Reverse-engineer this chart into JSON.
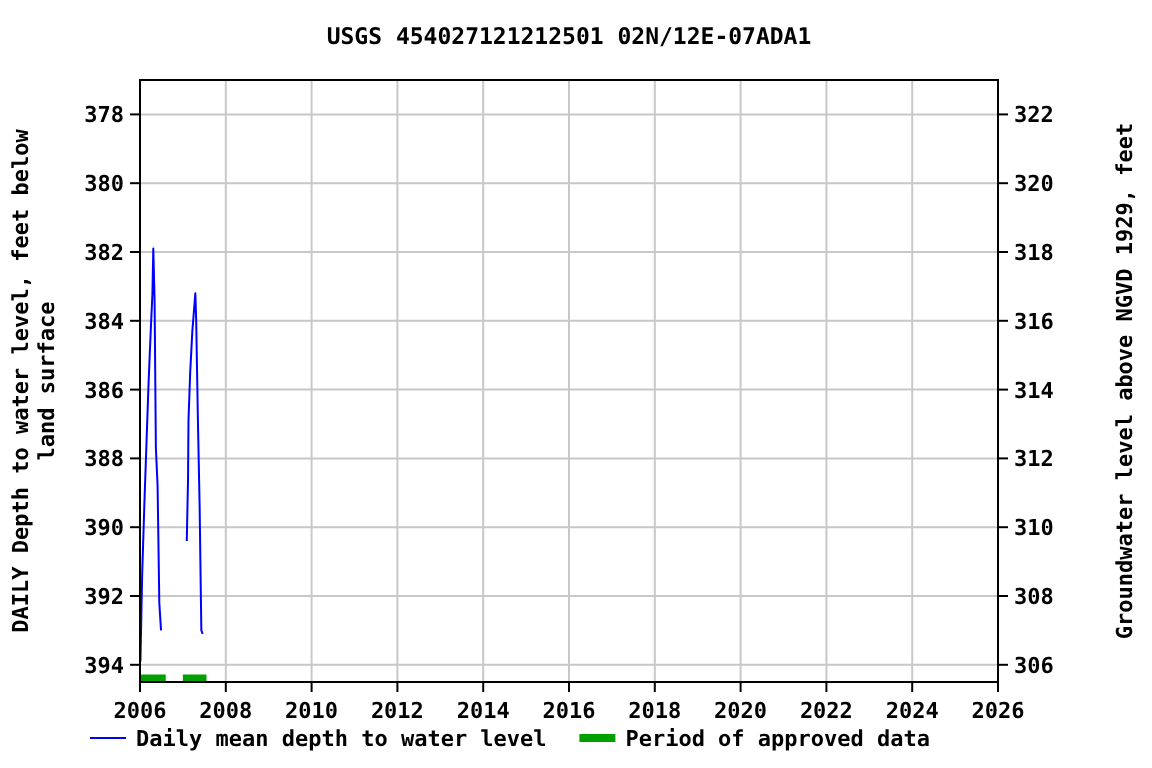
{
  "chart_data": {
    "type": "line",
    "title": "USGS 454027121212501 02N/12E-07ADA1",
    "ylabel": "DAILY Depth to water level, feet below land surface",
    "y2label": "Groundwater level above NGVD 1929, feet",
    "xlim": [
      2006,
      2026
    ],
    "xticks": [
      2006,
      2008,
      2010,
      2012,
      2014,
      2016,
      2018,
      2020,
      2022,
      2024,
      2026
    ],
    "ylim": [
      394.5,
      377
    ],
    "yticks": [
      378,
      380,
      382,
      384,
      386,
      388,
      390,
      392,
      394
    ],
    "y2lim": [
      305.5,
      323
    ],
    "y2ticks": [
      322,
      320,
      318,
      316,
      314,
      312,
      310,
      308,
      306
    ],
    "grid": true,
    "legend": "bottom",
    "series": [
      {
        "name": "Daily mean depth to water level",
        "color": "#0000ff",
        "x": [
          2006.01,
          2006.05,
          2006.1,
          2006.15,
          2006.2,
          2006.25,
          2006.29,
          2006.31,
          2006.34,
          2006.37,
          2006.41,
          2006.45,
          2006.49,
          2006.5,
          2007.09,
          2007.12,
          2007.13,
          2007.17,
          2007.22,
          2007.29,
          2007.31,
          2007.35,
          2007.39,
          2007.43,
          2007.46
        ],
        "values": [
          393.9,
          391.4,
          389.4,
          387.6,
          385.8,
          384.3,
          383.2,
          381.9,
          383.4,
          387.7,
          388.8,
          392.2,
          393.0,
          null,
          390.4,
          388.6,
          386.9,
          385.5,
          384.3,
          383.2,
          384.0,
          386.9,
          389.4,
          393.0,
          393.1
        ]
      },
      {
        "name": "Period of approved data",
        "color": "#00a000",
        "x": [
          2006.0,
          2006.6,
          2006.8,
          2007.0,
          2007.55
        ],
        "values": [
          394.4,
          394.4,
          null,
          394.4,
          394.4
        ]
      }
    ]
  }
}
